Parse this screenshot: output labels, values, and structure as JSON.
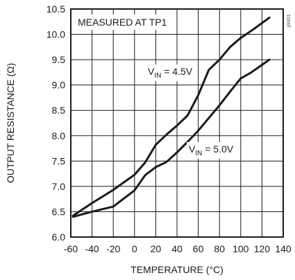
{
  "chart_data": {
    "type": "line",
    "xlabel": "TEMPERATURE (°C)",
    "ylabel": "OUTPUT RESISTANCE (Ω)",
    "xlim": [
      -60,
      140
    ],
    "ylim": [
      6.0,
      10.5
    ],
    "x_ticks": [
      -60,
      -40,
      -20,
      0,
      20,
      40,
      60,
      80,
      100,
      120,
      140
    ],
    "y_ticks": [
      "6.0",
      "6.5",
      "7.0",
      "7.5",
      "8.0",
      "8.5",
      "9.0",
      "9.5",
      "10.0",
      "10.5"
    ],
    "grid": true,
    "annotation": "MEASURED AT TP1",
    "figure_id": "plot01",
    "series": [
      {
        "label_main": "V",
        "label_sub": "IN",
        "label_rest": " = 4.5V",
        "x": [
          -58,
          -40,
          -20,
          0,
          10,
          20,
          30,
          40,
          50,
          60,
          70,
          80,
          90,
          100,
          110,
          127
        ],
        "y": [
          6.42,
          6.67,
          6.93,
          7.23,
          7.47,
          7.82,
          8.02,
          8.2,
          8.4,
          8.8,
          9.3,
          9.5,
          9.75,
          9.93,
          10.07,
          10.33
        ]
      },
      {
        "label_main": "V",
        "label_sub": "IN",
        "label_rest": " = 5.0V",
        "x": [
          -58,
          -40,
          -20,
          0,
          10,
          20,
          30,
          40,
          50,
          60,
          70,
          80,
          90,
          100,
          110,
          127
        ],
        "y": [
          6.4,
          6.5,
          6.6,
          6.92,
          7.22,
          7.38,
          7.48,
          7.67,
          7.88,
          8.1,
          8.35,
          8.6,
          8.87,
          9.13,
          9.25,
          9.5
        ]
      }
    ]
  }
}
